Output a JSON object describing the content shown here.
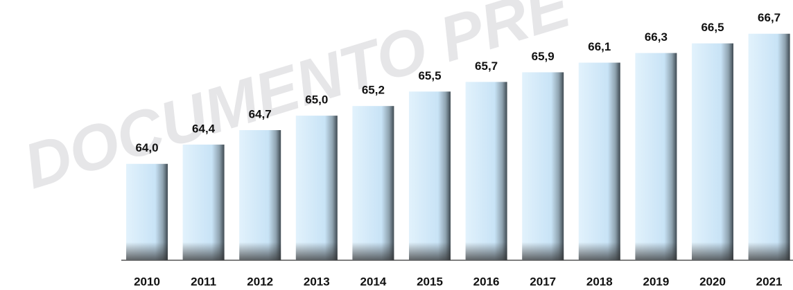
{
  "chart_data": {
    "type": "bar",
    "watermark": "DOCUMENTO PRE",
    "categories": [
      "2010",
      "2011",
      "2012",
      "2013",
      "2014",
      "2015",
      "2016",
      "2017",
      "2018",
      "2019",
      "2020",
      "2021"
    ],
    "values": [
      64.0,
      64.4,
      64.7,
      65.0,
      65.2,
      65.5,
      65.7,
      65.9,
      66.1,
      66.3,
      66.5,
      66.7
    ],
    "value_labels": [
      "64,0",
      "64,4",
      "64,7",
      "65,0",
      "65,2",
      "65,5",
      "65,7",
      "65,9",
      "66,1",
      "66,3",
      "66,5",
      "66,7"
    ],
    "color": "#d4ebf9",
    "ylim": [
      62,
      67.4
    ]
  }
}
